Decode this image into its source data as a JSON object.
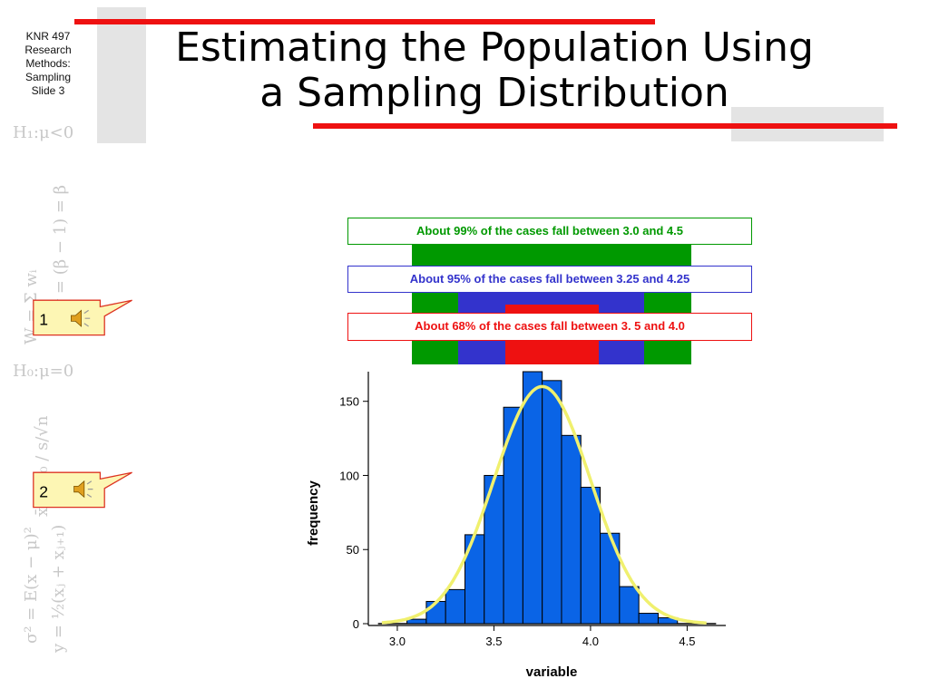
{
  "slide_label": [
    "KNR 497",
    "Research",
    "Methods:",
    "Sampling",
    "Slide 3"
  ],
  "title": [
    "Estimating the Population Using",
    "a Sampling Distribution"
  ],
  "callouts": [
    {
      "number": "1",
      "icon": "speaker-icon"
    },
    {
      "number": "2",
      "icon": "speaker-icon"
    }
  ],
  "bands": [
    {
      "label": "About 99% of the cases fall between 3.0 and 4.5",
      "color": "#009900",
      "from": 3.0,
      "to": 4.5
    },
    {
      "label": "About 95% of the cases fall between 3.25 and 4.25",
      "color": "#3333cc",
      "from": 3.25,
      "to": 4.25
    },
    {
      "label": "About 68% of the cases fall between 3. 5 and 4.0",
      "color": "#ee1111",
      "from": 3.5,
      "to": 4.0
    }
  ],
  "colors": {
    "title_red": "#ee1111",
    "bar_fill": "#0a64e6",
    "curve": "#f0f06e",
    "callout_fill": "#fdf6b4",
    "callout_border": "#dd3322"
  },
  "chart_data": {
    "type": "bar",
    "title": "",
    "xlabel": "variable",
    "ylabel": "frequency",
    "xlim": [
      2.85,
      4.7
    ],
    "ylim": [
      0,
      170
    ],
    "bin_width": 0.1,
    "bins": [
      {
        "x": 3.1,
        "value": 3
      },
      {
        "x": 3.2,
        "value": 15
      },
      {
        "x": 3.3,
        "value": 23
      },
      {
        "x": 3.4,
        "value": 60
      },
      {
        "x": 3.5,
        "value": 100
      },
      {
        "x": 3.6,
        "value": 146
      },
      {
        "x": 3.7,
        "value": 170
      },
      {
        "x": 3.8,
        "value": 164
      },
      {
        "x": 3.9,
        "value": 127
      },
      {
        "x": 4.0,
        "value": 92
      },
      {
        "x": 4.1,
        "value": 61
      },
      {
        "x": 4.2,
        "value": 25
      },
      {
        "x": 4.3,
        "value": 7
      },
      {
        "x": 4.4,
        "value": 4
      }
    ],
    "normal_curve": {
      "mean": 3.75,
      "sd": 0.25,
      "peak": 160
    },
    "x_ticks": [
      "3.0",
      "3.5",
      "4.0",
      "4.5"
    ],
    "x_tick_values": [
      3.0,
      3.5,
      4.0,
      4.5
    ],
    "y_ticks": [
      "0",
      "50",
      "100",
      "150"
    ],
    "y_tick_values": [
      0,
      50,
      100,
      150
    ]
  }
}
